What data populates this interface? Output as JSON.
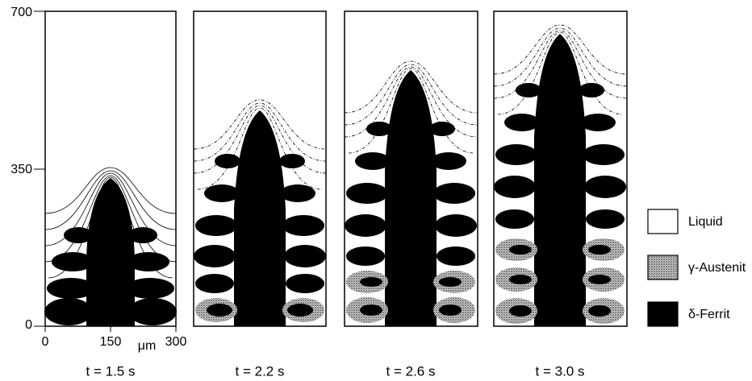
{
  "y_axis": {
    "ticks": [
      "0",
      "350",
      "700"
    ]
  },
  "x_axis": {
    "ticks": [
      "0",
      "150",
      "300"
    ],
    "unit": "μm"
  },
  "panels": [
    {
      "caption": "t = 1.5 s"
    },
    {
      "caption": "t = 2.2 s"
    },
    {
      "caption": "t = 2.6 s"
    },
    {
      "caption": "t = 3.0 s"
    }
  ],
  "legend": [
    {
      "label": "Liquid"
    },
    {
      "label": "γ-Austenit"
    },
    {
      "label": "δ-Ferrit"
    }
  ]
}
